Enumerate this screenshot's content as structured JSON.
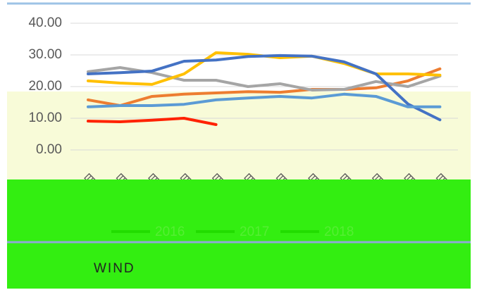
{
  "chart_data": {
    "type": "line",
    "categories": [
      "1月",
      "2月",
      "3月",
      "4月",
      "5月",
      "6月",
      "7月",
      "8月",
      "9月",
      "10月",
      "11月",
      "12月"
    ],
    "series": [
      {
        "name": "2016",
        "color": "#ed7d31",
        "values": [
          15.8,
          14,
          16.9,
          17.6,
          18,
          18.4,
          18.2,
          19.1,
          19.1,
          19.6,
          21.8,
          25.6
        ]
      },
      {
        "name": "2017",
        "color": "#a5a5a5",
        "values": [
          24.7,
          26,
          24.4,
          22,
          22,
          20,
          20.9,
          18.9,
          19.1,
          21.6,
          20,
          23.3
        ]
      },
      {
        "name": "2018",
        "color": "#ffc000",
        "values": [
          21.8,
          21.1,
          20.7,
          24,
          30.7,
          30.2,
          29.1,
          29.6,
          27.3,
          24,
          24,
          23.6
        ]
      },
      {
        "color": "#4472c4",
        "values": [
          24,
          24.4,
          24.9,
          28,
          28.4,
          29.5,
          29.8,
          29.6,
          27.8,
          24,
          14.5,
          9.5
        ]
      },
      {
        "color": "#5b9bd5",
        "values": [
          13.6,
          14,
          14,
          14.4,
          15.8,
          16.4,
          16.9,
          16.4,
          17.6,
          16.9,
          13.6,
          13.6
        ]
      },
      {
        "color": "#ff2200",
        "values": [
          9.1,
          8.9,
          9.4,
          10,
          8,
          null,
          null,
          null,
          null,
          null,
          null,
          null
        ]
      }
    ],
    "ylim": [
      0,
      40
    ],
    "yticks": [
      {
        "value": 0,
        "label": "0.00"
      },
      {
        "value": 10,
        "label": "10.00"
      },
      {
        "value": 20,
        "label": "20.00"
      },
      {
        "value": 30,
        "label": "30.00"
      },
      {
        "value": 40,
        "label": "40.00"
      }
    ],
    "grid": true,
    "footer": "WIND"
  }
}
